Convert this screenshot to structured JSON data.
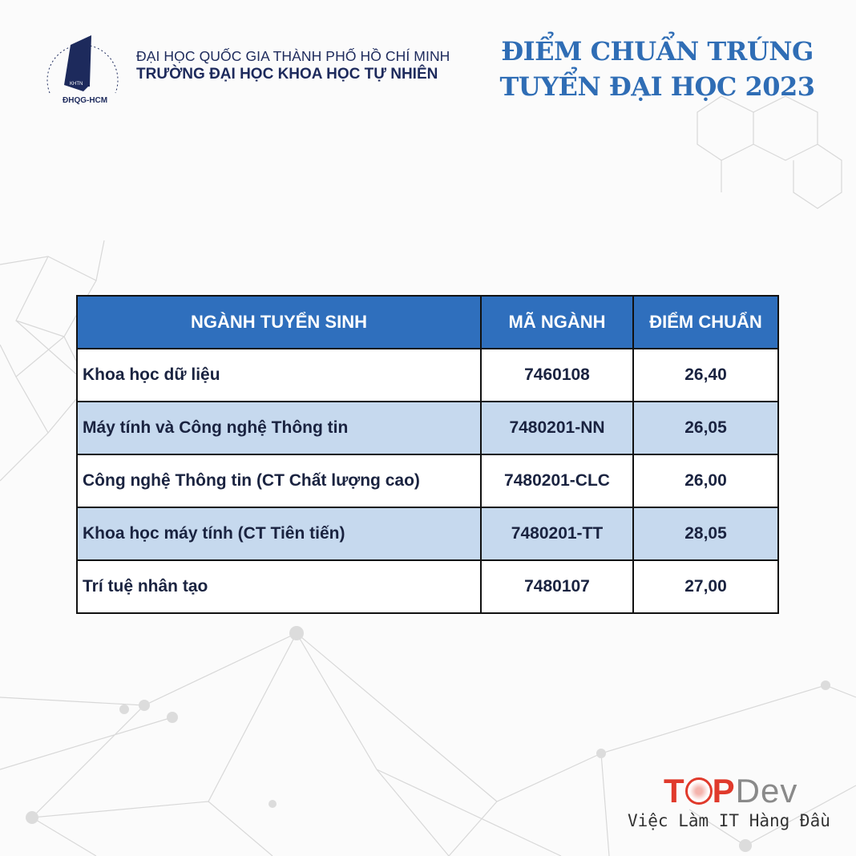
{
  "header": {
    "logo": {
      "ring_text": "TRƯỜNG ĐẠI HỌC KHOA HỌC TỰ NHIÊN",
      "badge": "KHTN",
      "bottom": "ĐHQG-HCM"
    },
    "university_line1": "ĐẠI HỌC QUỐC GIA THÀNH PHỐ HỒ CHÍ MINH",
    "university_line2": "TRƯỜNG ĐẠI HỌC KHOA HỌC TỰ NHIÊN",
    "title_line1": "ĐIỂM CHUẨN TRÚNG",
    "title_line2": "TUYỂN ĐẠI HỌC 2023"
  },
  "table": {
    "columns": [
      "NGÀNH TUYỂN SINH",
      "MÃ NGÀNH",
      "ĐIỂM CHUẨN"
    ],
    "rows": [
      {
        "major": "Khoa học dữ liệu",
        "code": "7460108",
        "score": "26,40"
      },
      {
        "major": "Máy tính và Công nghệ  Thông tin",
        "code": "7480201-NN",
        "score": "26,05"
      },
      {
        "major": "Công nghệ  Thông tin (CT Chất lượng cao)",
        "code": "7480201-CLC",
        "score": "26,00"
      },
      {
        "major": "Khoa học máy tính (CT Tiên tiến)",
        "code": "7480201-TT",
        "score": "28,05"
      },
      {
        "major": "Trí tuệ nhân tạo",
        "code": "7480107",
        "score": "27,00"
      }
    ]
  },
  "brand": {
    "top": "T",
    "p": "P",
    "dev": "Dev",
    "tagline": "Việc Làm IT Hàng Đầu"
  },
  "colors": {
    "header_blue": "#2f6fbd",
    "alt_row": "#c6d9ee",
    "title": "#2f6db5",
    "topdev_red": "#e03a2c"
  }
}
